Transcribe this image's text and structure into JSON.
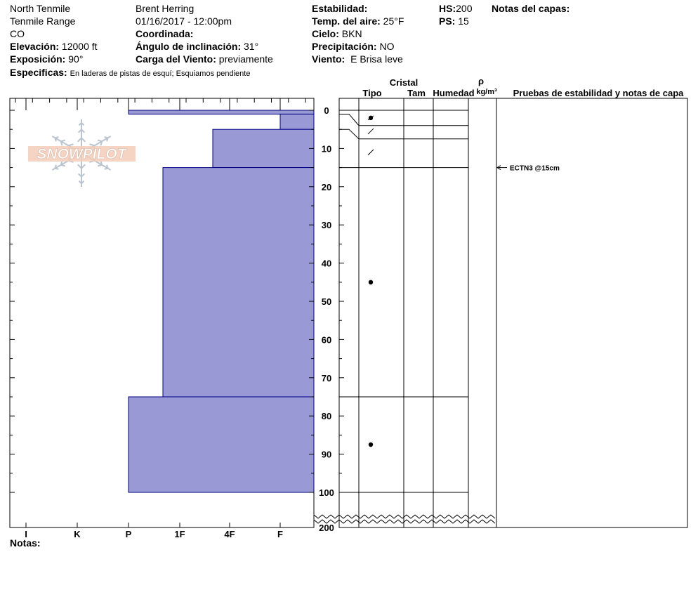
{
  "header": {
    "location": "North Tenmile",
    "range": "Tenmile Range",
    "state": "CO",
    "elevation_label": "Elevación:",
    "elevation_value": "12000 ft",
    "exposure_label": "Exposición:",
    "exposure_value": "90°",
    "specifics_label": "Especificas:",
    "specifics_value": "En laderas de pistas de esquí; Esquiamos pendiente",
    "observer": "Brent Herring",
    "datetime": "01/16/2017 - 12:00pm",
    "coord_label": "Coordinada:",
    "slope_label": "Ángulo de inclinación:",
    "slope_value": "31°",
    "wind_load_label": "Carga del Viento:",
    "wind_load_value": "previamente",
    "stability_label": "Estabilidad:",
    "air_temp_label": "Temp. del aire:",
    "air_temp_value": "25°F",
    "sky_label": "Cielo:",
    "sky_value": "BKN",
    "precip_label": "Precipitación:",
    "precip_value": "NO",
    "wind_label": "Viento:",
    "wind_value": "E Brisa leve",
    "hs_label": "HS:",
    "hs_value": "200",
    "ps_label": "PS:",
    "ps_value": "15",
    "layer_notes_label": "Notas del capas:"
  },
  "columns": {
    "cristal": "Cristal",
    "tipo": "Tipo",
    "tam": "Tam",
    "humedad": "Humedad",
    "rho": "ρ",
    "density_unit": "kg/m³",
    "tests": "Pruebas de estabilidad y notas de capa"
  },
  "footer": {
    "notes_label": "Notas:"
  },
  "logo_text": "SNOWPILOT",
  "colors": {
    "layer_fill": "#9999d6",
    "layer_stroke": "#000080"
  },
  "chart_data": {
    "type": "bar",
    "title": "",
    "orientation": "horizontal",
    "x_axis_label": "",
    "x_categories": [
      "I",
      "K",
      "P",
      "1F",
      "4F",
      "F"
    ],
    "y_axis_label": "",
    "y_ticks": [
      0,
      10,
      20,
      30,
      40,
      50,
      60,
      70,
      80,
      90,
      100,
      200
    ],
    "y_range": [
      0,
      200
    ],
    "hardness_layers": [
      {
        "top": 0,
        "bottom": 1,
        "hardness": "P"
      },
      {
        "top": 1,
        "bottom": 5,
        "hardness": "F"
      },
      {
        "top": 5,
        "bottom": 15,
        "hardness": "4F-"
      },
      {
        "top": 15,
        "bottom": 75,
        "hardness": "1F-"
      },
      {
        "top": 75,
        "bottom": 100,
        "hardness": "P"
      }
    ],
    "layer_boundaries": [
      0,
      4,
      7.5,
      15,
      75,
      100
    ],
    "crystal_symbols": [
      {
        "depth": 2,
        "symbol": "rounding-faceted"
      },
      {
        "depth": 5.5,
        "symbol": "decomposing"
      },
      {
        "depth": 11,
        "symbol": "decomposing"
      },
      {
        "depth": 45,
        "symbol": "rounded"
      },
      {
        "depth": 87.5,
        "symbol": "rounded"
      }
    ],
    "stability_tests": [
      {
        "depth": 15,
        "label": "ECTN3 @15cm"
      }
    ]
  }
}
